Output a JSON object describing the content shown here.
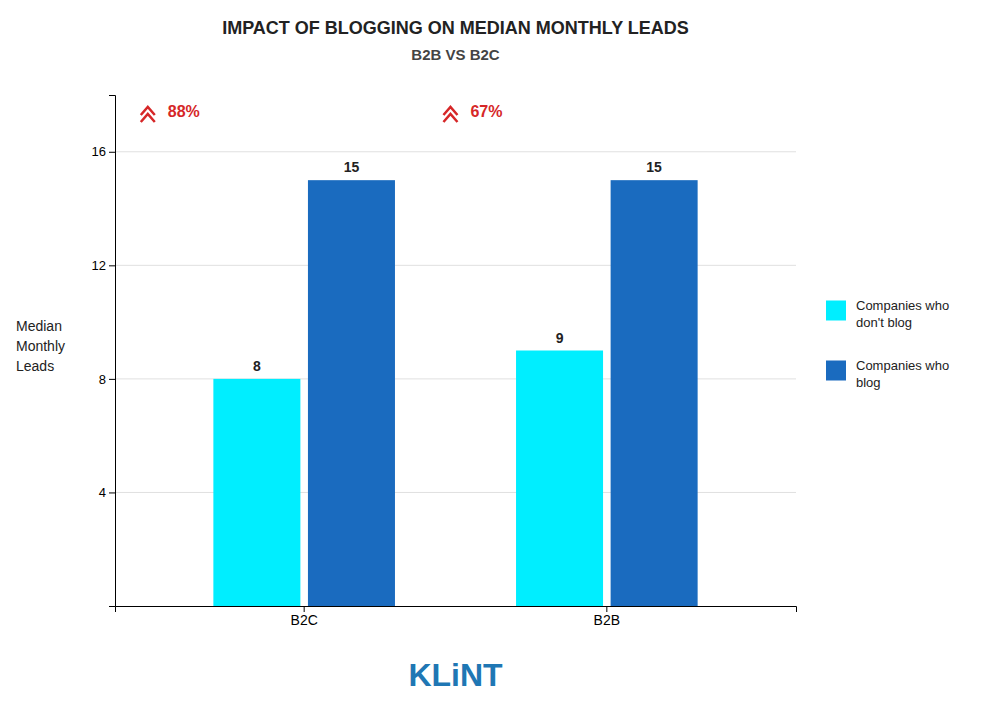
{
  "chart_data": {
    "type": "bar",
    "title": "IMPACT OF BLOGGING ON MEDIAN MONTHLY LEADS",
    "subtitle": "B2B VS B2C",
    "y_label": "Median\nMonthly\nLeads",
    "categories": [
      "B2C",
      "B2B"
    ],
    "series": [
      {
        "name": "Companies who\ndon't blog",
        "color": "#00EEFF",
        "values": [
          8,
          9
        ]
      },
      {
        "name": "Companies who\nblog",
        "color": "#1A6BBF",
        "values": [
          15,
          15
        ]
      }
    ],
    "annotations": [
      {
        "text": "88%",
        "category": "B2C"
      },
      {
        "text": "67%",
        "category": "B2B"
      },
      {
        "text": "KLiNT"
      }
    ],
    "ylim": [
      0,
      18
    ],
    "yticks": [
      4,
      8,
      12,
      16
    ],
    "grid": true,
    "legend": "right",
    "data_labels": true
  }
}
